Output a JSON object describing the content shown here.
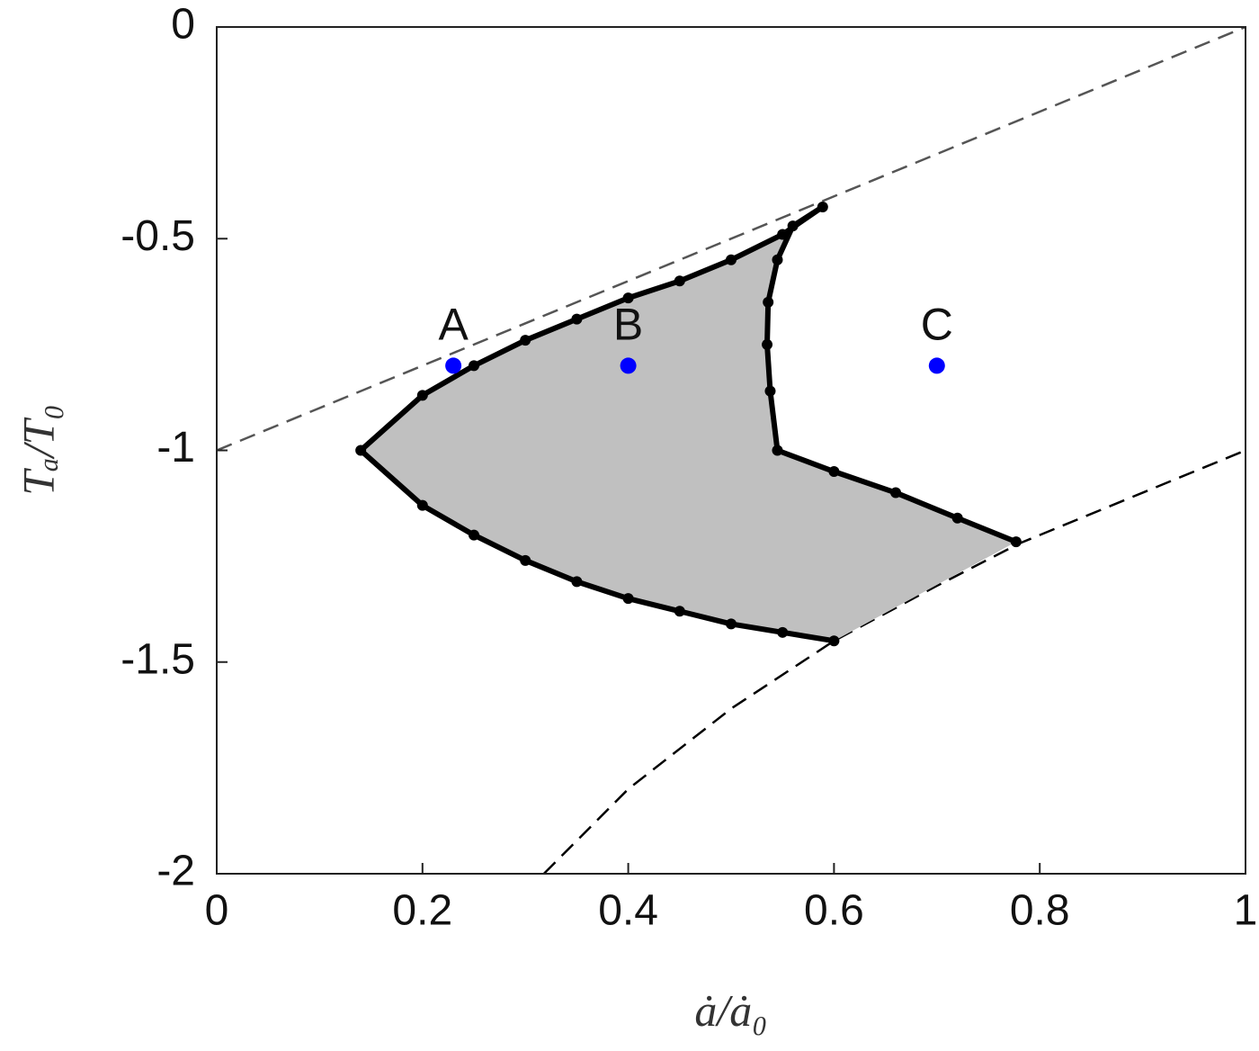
{
  "chart_data": {
    "type": "line",
    "xlabel": "ȧ/ȧ₀",
    "ylabel": "Tₐ/T₀",
    "xlim": [
      0,
      1
    ],
    "ylim": [
      -2,
      0
    ],
    "xticks": [
      0,
      0.2,
      0.4,
      0.6,
      0.8,
      1
    ],
    "yticks": [
      0,
      -0.5,
      -1,
      -1.5,
      -2
    ],
    "series": [
      {
        "color": "#555555",
        "style": "dashed",
        "x": [
          0,
          1
        ],
        "values": [
          -1,
          0
        ]
      },
      {
        "color": "#000000",
        "style": "dashed",
        "x": [
          0.318,
          0.4,
          0.5,
          0.6,
          0.7,
          0.78,
          0.9,
          1
        ],
        "values": [
          -2,
          -1.8,
          -1.61,
          -1.45,
          -1.32,
          -1.22,
          -1.1,
          -1.0
        ]
      },
      {
        "color": "#000000",
        "style": "dotted",
        "fill": "#c0c0c0",
        "x": [
          0.6,
          0.55,
          0.5,
          0.45,
          0.4,
          0.35,
          0.3,
          0.25,
          0.2,
          0.14,
          0.2,
          0.25,
          0.3,
          0.35,
          0.4,
          0.45,
          0.5,
          0.55,
          0.589,
          0.56,
          0.545,
          0.536,
          0.535,
          0.538,
          0.545,
          0.6,
          0.66,
          0.72,
          0.777
        ],
        "values": [
          -1.45,
          -1.43,
          -1.41,
          -1.38,
          -1.35,
          -1.31,
          -1.26,
          -1.2,
          -1.13,
          -1.0,
          -0.87,
          -0.8,
          -0.74,
          -0.69,
          -0.64,
          -0.6,
          -0.55,
          -0.49,
          -0.425,
          -0.47,
          -0.55,
          -0.65,
          -0.75,
          -0.86,
          -1.0,
          -1.05,
          -1.1,
          -1.16,
          -1.216
        ]
      }
    ],
    "points": {
      "color": "#0000ff",
      "labels": [
        "A",
        "B",
        "C"
      ],
      "x": [
        0.23,
        0.4,
        0.7
      ],
      "values": [
        -0.8,
        -0.8,
        -0.8
      ]
    }
  }
}
